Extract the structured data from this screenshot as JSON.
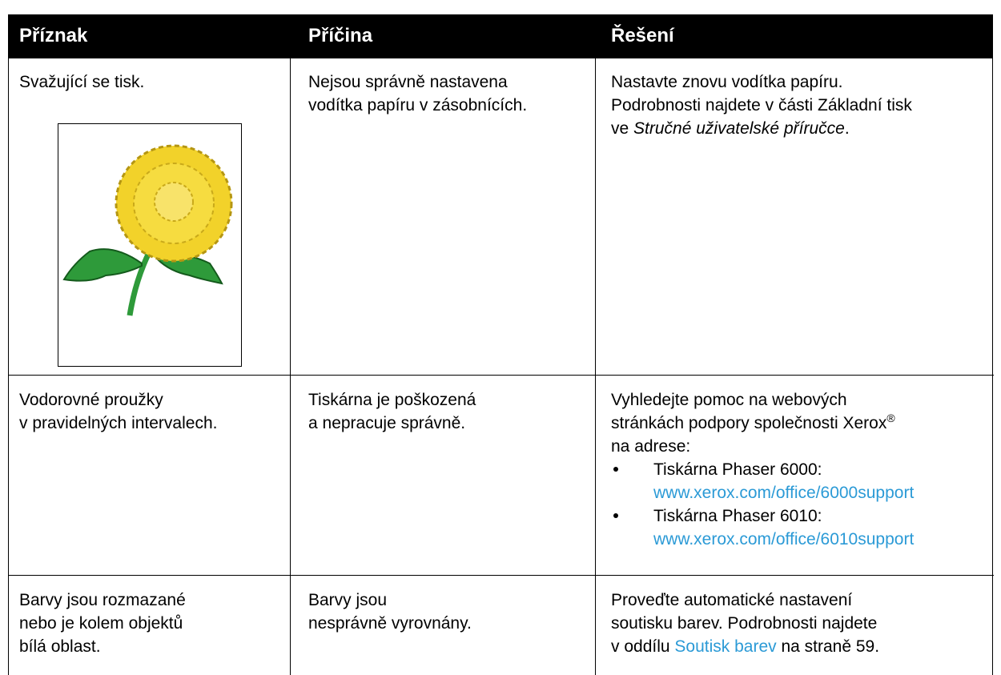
{
  "table": {
    "headers": [
      "Příznak",
      "Příčina",
      "Řešení"
    ],
    "rows": [
      {
        "symptom": [
          "Svažující se tisk."
        ],
        "cause": [
          "Nejsou správně nastavena",
          "vodítka papíru v zásobnících."
        ],
        "solution": [
          [
            "Nastavte znovu vodítka papíru."
          ],
          [
            "Podrobnosti najdete v části Základní tisk"
          ],
          [
            "ve ",
            "Stručné uživatelské příručce",
            "."
          ]
        ]
      },
      {
        "symptom": [
          "Vodorovné proužky",
          "v pravidelných intervalech."
        ],
        "cause": [
          "Tiskárna je poškozená",
          "a nepracuje správně."
        ],
        "solution": [
          [
            "Vyhledejte pomoc na webových"
          ],
          [
            "stránkách podpory společnosti Xerox",
            "®"
          ],
          [
            "na adrese:"
          ]
        ],
        "bullets": [
          {
            "label": "Tiskárna Phaser 6000:",
            "url": "www.xerox.com/office/6000support"
          },
          {
            "label": "Tiskárna Phaser 6010:",
            "url": "www.xerox.com/office/6010support"
          }
        ]
      },
      {
        "symptom": [
          "Barvy jsou rozmazané",
          "nebo je kolem objektů",
          "bílá oblast."
        ],
        "cause": [
          "Barvy jsou",
          "nesprávně vyrovnány."
        ],
        "solution": [
          [
            "Proveďte automatické nastavení"
          ],
          [
            "soutisku barev. Podrobnosti najdete"
          ],
          [
            "v oddílu ",
            "Soutisk barev",
            " na straně 59."
          ]
        ]
      }
    ]
  }
}
